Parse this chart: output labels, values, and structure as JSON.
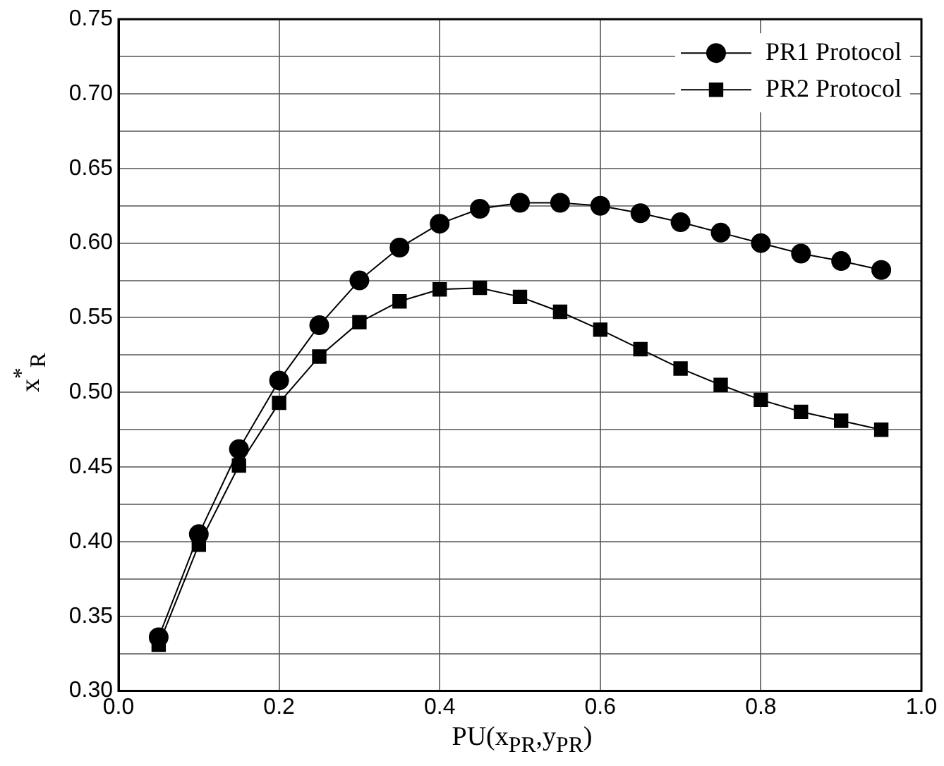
{
  "chart_data": {
    "type": "line",
    "xlabel": "PU(x$_{PR}$,y$_{PR}$)",
    "ylabel": "x$^{*}$$_{R}$",
    "x": [
      0.05,
      0.1,
      0.15,
      0.2,
      0.25,
      0.3,
      0.35,
      0.4,
      0.45,
      0.5,
      0.55,
      0.6,
      0.65,
      0.7,
      0.75,
      0.8,
      0.85,
      0.9,
      0.95
    ],
    "series": [
      {
        "name": "PR1 Protocol",
        "color": "#000000",
        "marker": "circle",
        "values": [
          0.336,
          0.405,
          0.462,
          0.508,
          0.545,
          0.575,
          0.597,
          0.613,
          0.623,
          0.627,
          0.627,
          0.625,
          0.62,
          0.614,
          0.607,
          0.6,
          0.593,
          0.588,
          0.582
        ]
      },
      {
        "name": "PR2 Protocol",
        "color": "#000000",
        "marker": "square",
        "values": [
          0.331,
          0.398,
          0.451,
          0.493,
          0.524,
          0.547,
          0.561,
          0.569,
          0.57,
          0.564,
          0.554,
          0.542,
          0.529,
          0.516,
          0.505,
          0.495,
          0.487,
          0.481,
          0.475
        ]
      }
    ],
    "xlim": [
      0.0,
      1.0
    ],
    "xticks": [
      {
        "value": 0,
        "label": "0.0"
      },
      0.2,
      0.4,
      0.6,
      0.8,
      {
        "value": 1,
        "label": "1.0"
      }
    ],
    "ylim": [
      0.3,
      0.75
    ],
    "yticks": [
      {
        "value": 0.3,
        "label": "0.30"
      },
      {
        "value": 0.325,
        "label": null
      },
      {
        "value": 0.35,
        "label": "0.35"
      },
      {
        "value": 0.375,
        "label": null
      },
      {
        "value": 0.4,
        "label": "0.40"
      },
      {
        "value": 0.425,
        "label": null
      },
      {
        "value": 0.45,
        "label": "0.45"
      },
      {
        "value": 0.475,
        "label": null
      },
      {
        "value": 0.5,
        "label": "0.50"
      },
      {
        "value": 0.525,
        "label": null
      },
      {
        "value": 0.55,
        "label": "0.55"
      },
      {
        "value": 0.575,
        "label": null
      },
      {
        "value": 0.6,
        "label": "0.60"
      },
      {
        "value": 0.625,
        "label": null
      },
      {
        "value": 0.65,
        "label": "0.65"
      },
      {
        "value": 0.675,
        "label": null
      },
      {
        "value": 0.7,
        "label": "0.70"
      },
      {
        "value": 0.725,
        "label": null
      },
      {
        "value": 0.75,
        "label": "0.75"
      }
    ],
    "grid": true,
    "legend": "top right",
    "line_style": "solid"
  }
}
